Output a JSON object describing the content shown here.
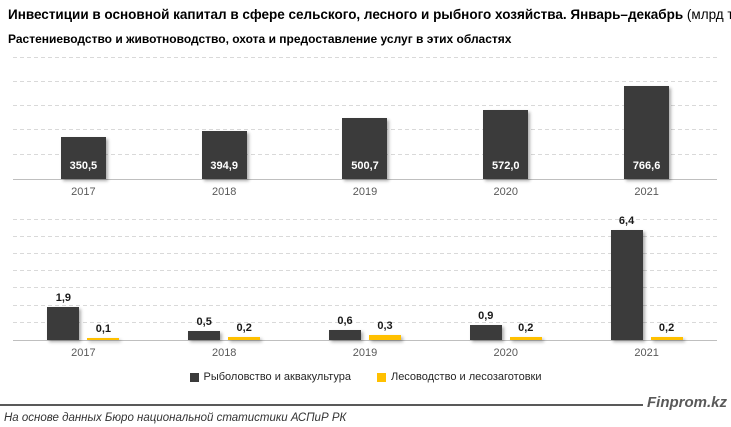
{
  "title": {
    "main": "Инвестиции в основной капитал в сфере сельского, лесного и рыбного хозяйства. Январь–декабрь",
    "unit": " (млрд тг)"
  },
  "legend": {
    "items": [
      {
        "label": "Рыболовство и аквакультура",
        "color": "#3b3b3b"
      },
      {
        "label": "Лесоводство и лесозаготовки",
        "color": "#ffc000"
      }
    ]
  },
  "footer": {
    "brand": "Finprom.kz",
    "source": "На основе данных Бюро национальной статистики АСПиР РК"
  },
  "colors": {
    "dark_bar": "#3b3b3b",
    "yellow_bar": "#ffc000",
    "gridline": "#d9d9d9",
    "axis": "#bfbfbf",
    "axis_text": "#595959"
  },
  "chart_data": [
    {
      "type": "bar",
      "title": "Растениеводство и животноводство, охота и предоставление услуг в этих областях",
      "categories": [
        "2017",
        "2018",
        "2019",
        "2020",
        "2021"
      ],
      "values": [
        350.5,
        394.9,
        500.7,
        572.0,
        766.6
      ],
      "value_labels": [
        "350,5",
        "394,9",
        "500,7",
        "572,0",
        "766,6"
      ],
      "color": "#3b3b3b",
      "xlabel": "",
      "ylabel": "",
      "ylim": [
        0,
        1005
      ],
      "grid_step": 200,
      "grid": "dashed-horizontal",
      "value_label_position": "inside-bottom"
    },
    {
      "type": "bar",
      "categories": [
        "2017",
        "2018",
        "2019",
        "2020",
        "2021"
      ],
      "series": [
        {
          "name": "Рыболовство и аквакультура",
          "color": "#3b3b3b",
          "values": [
            1.9,
            0.5,
            0.6,
            0.9,
            6.4
          ],
          "value_labels": [
            "1,9",
            "0,5",
            "0,6",
            "0,9",
            "6,4"
          ]
        },
        {
          "name": "Лесоводство и лесозаготовки",
          "color": "#ffc000",
          "values": [
            0.1,
            0.2,
            0.3,
            0.2,
            0.2
          ],
          "value_labels": [
            "0,1",
            "0,2",
            "0,3",
            "0,2",
            "0,2"
          ]
        }
      ],
      "xlabel": "",
      "ylabel": "",
      "ylim": [
        0,
        7.5
      ],
      "grid_step": 1,
      "grid": "dashed-horizontal",
      "value_label_position": "above",
      "legend_position": "bottom"
    }
  ]
}
